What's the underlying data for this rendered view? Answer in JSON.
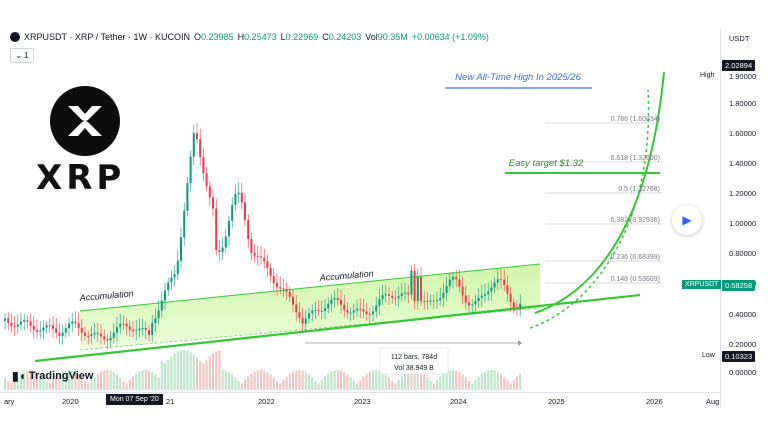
{
  "header": {
    "symbol": "XRPUSDT · XRP / Tether · 1W · KUCOIN",
    "ohlc": [
      {
        "label": "O",
        "value": "0.23985"
      },
      {
        "label": "H",
        "value": "0.25473"
      },
      {
        "label": "L",
        "value": "0.22969"
      },
      {
        "label": "C",
        "value": "0.24203"
      },
      {
        "label": "Vol",
        "value": "90.35M"
      },
      {
        "label": "",
        "value": "+0.00634 (+1.09%)"
      }
    ],
    "collapse_label": "1"
  },
  "logo": {
    "word": "XRP"
  },
  "annotations": {
    "ath": "New All-Time High In 2025/26",
    "target": "Easy target $1.32",
    "accumulation_left": "Accumulation",
    "accumulation_mid": "Accumulation",
    "measure_bars": "112 bars, 784d",
    "measure_vol": "Vol 38.949 B"
  },
  "fib_levels": [
    {
      "label": "0.786 (1.60834)",
      "value": 1.60834
    },
    {
      "label": "0.618 (1.32600)",
      "value": 1.326
    },
    {
      "label": "0.5 (1.12768)",
      "value": 1.12768
    },
    {
      "label": "0.382 (0.92936)",
      "value": 0.92936
    },
    {
      "label": "0.236 (0.68399)",
      "value": 0.68399
    },
    {
      "label": "0.148 (0.53609)",
      "value": 0.53609
    }
  ],
  "price_axis": {
    "currency": "USDT",
    "ticks": [
      "1.80000",
      "1.60000",
      "1.40000",
      "1.20000",
      "1.00000",
      "0.80000",
      "0.60000",
      "0.40000",
      "0.20000",
      "0.00000"
    ],
    "high_label": "High",
    "high_value": "2.02894",
    "top_tick": "1.90000",
    "symbol_badge": "XRPUSDT",
    "last_price": "0.58258",
    "low_label": "Low",
    "low_value": "0.10323"
  },
  "time_axis": {
    "labels": [
      "ary",
      "2020",
      "21",
      "2022",
      "2023",
      "2024",
      "2025",
      "2026",
      "Aug"
    ],
    "crosshair": "Mon 07 Sep '20"
  },
  "brand": "TradingView",
  "colors": {
    "up": "#089981",
    "down": "#f23645",
    "channel": "#32c832",
    "channel_fill": "#c8f59a",
    "fib": "#9598a1"
  },
  "chart_data": {
    "type": "candlestick",
    "price_range": [
      0.0,
      2.0
    ],
    "period": "weekly",
    "ath_target_curve": true
  }
}
